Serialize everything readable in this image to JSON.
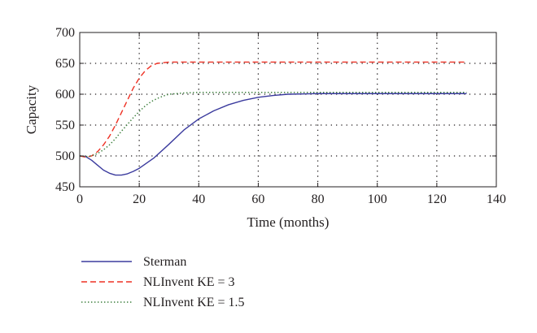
{
  "chart_data": {
    "type": "line",
    "xlabel": "Time (months)",
    "ylabel": "Capacity",
    "xlim": [
      0,
      140
    ],
    "ylim": [
      450,
      700
    ],
    "xticks": [
      0,
      20,
      40,
      60,
      80,
      100,
      120,
      140
    ],
    "yticks": [
      450,
      500,
      550,
      600,
      650,
      700
    ],
    "grid": true,
    "legend_position": "bottom-left",
    "series": [
      {
        "name": "Sterman",
        "color": "#3b3b9e",
        "style": "solid",
        "x": [
          0,
          2,
          4,
          6,
          8,
          10,
          12,
          14,
          16,
          18,
          20,
          25,
          30,
          35,
          40,
          45,
          50,
          55,
          60,
          65,
          70,
          80,
          90,
          100,
          110,
          120,
          130
        ],
        "y": [
          500,
          499,
          493,
          485,
          477,
          472,
          469,
          469,
          471,
          475,
          480,
          497,
          519,
          542,
          560,
          573,
          583,
          590,
          595,
          598,
          600,
          601,
          601,
          601,
          601,
          601,
          601
        ]
      },
      {
        "name": "NLInvent KE = 3",
        "color": "#ee3124",
        "style": "dashed",
        "x": [
          0,
          2,
          4,
          6,
          8,
          10,
          12,
          14,
          16,
          18,
          20,
          22,
          24,
          26,
          28,
          30,
          35,
          40,
          50,
          60,
          80,
          100,
          120,
          130
        ],
        "y": [
          500,
          498,
          500,
          507,
          518,
          532,
          550,
          570,
          590,
          610,
          626,
          638,
          646,
          650,
          651,
          652,
          652,
          652,
          652,
          652,
          652,
          652,
          652,
          652
        ]
      },
      {
        "name": "NLInvent KE = 1.5",
        "color": "#3a7d3a",
        "style": "dotted",
        "x": [
          0,
          2,
          4,
          6,
          8,
          10,
          12,
          14,
          16,
          18,
          20,
          22,
          24,
          26,
          28,
          30,
          35,
          40,
          50,
          60,
          80,
          100,
          120,
          130
        ],
        "y": [
          500,
          499,
          500,
          504,
          510,
          518,
          528,
          540,
          551,
          562,
          572,
          581,
          588,
          593,
          597,
          600,
          602,
          603,
          603,
          603,
          603,
          603,
          603,
          603
        ]
      }
    ]
  }
}
